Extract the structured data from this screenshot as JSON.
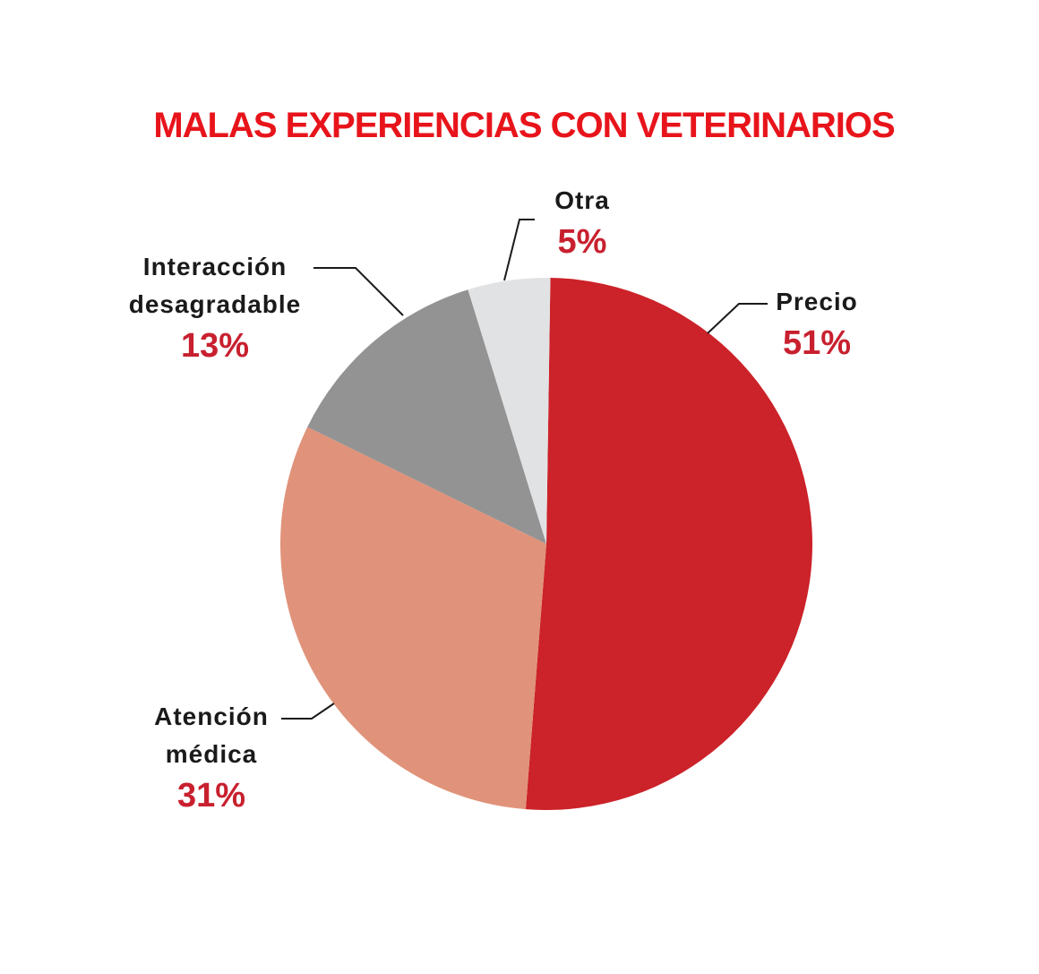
{
  "chart_data": {
    "type": "pie",
    "title": "MALAS EXPERIENCIAS CON VETERINARIOS",
    "categories": [
      "Precio",
      "Atención médica",
      "Interacción desagradable",
      "Otra"
    ],
    "values": [
      51,
      31,
      13,
      5
    ],
    "value_labels": [
      "51%",
      "31%",
      "13%",
      "5%"
    ],
    "colors": [
      "#cc2229",
      "#e0937a",
      "#939393",
      "#e1e2e4"
    ]
  }
}
